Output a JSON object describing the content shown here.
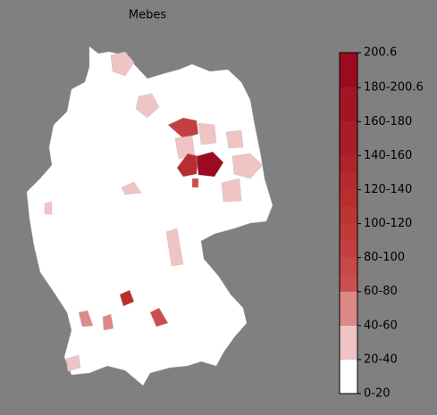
{
  "title": "Mebes",
  "colorbar": {
    "lim": [
      0,
      200.6
    ],
    "ticks": [
      {
        "value": 0,
        "label": "0-20"
      },
      {
        "value": 20,
        "label": "20-40"
      },
      {
        "value": 40,
        "label": "40-60"
      },
      {
        "value": 60,
        "label": "60-80"
      },
      {
        "value": 80,
        "label": "80-100"
      },
      {
        "value": 100,
        "label": "100-120"
      },
      {
        "value": 120,
        "label": "120-140"
      },
      {
        "value": 140,
        "label": "140-160"
      },
      {
        "value": 160,
        "label": "160-180"
      },
      {
        "value": 180,
        "label": "180-200.6"
      },
      200.6
    ],
    "bounds": [
      0,
      20,
      40,
      60,
      70,
      80,
      90,
      100,
      110,
      120,
      130,
      140,
      160,
      180,
      200.6
    ],
    "colors": [
      "#ffffff",
      "#f0c4c4",
      "#de8888",
      "#cc4e4e",
      "#c94848",
      "#c44040",
      "#c03a3a",
      "#bc3434",
      "#b82e2e",
      "#b42a2e",
      "#af2329",
      "#aa1c26",
      "#a31424",
      "#9b0a20"
    ]
  }
}
